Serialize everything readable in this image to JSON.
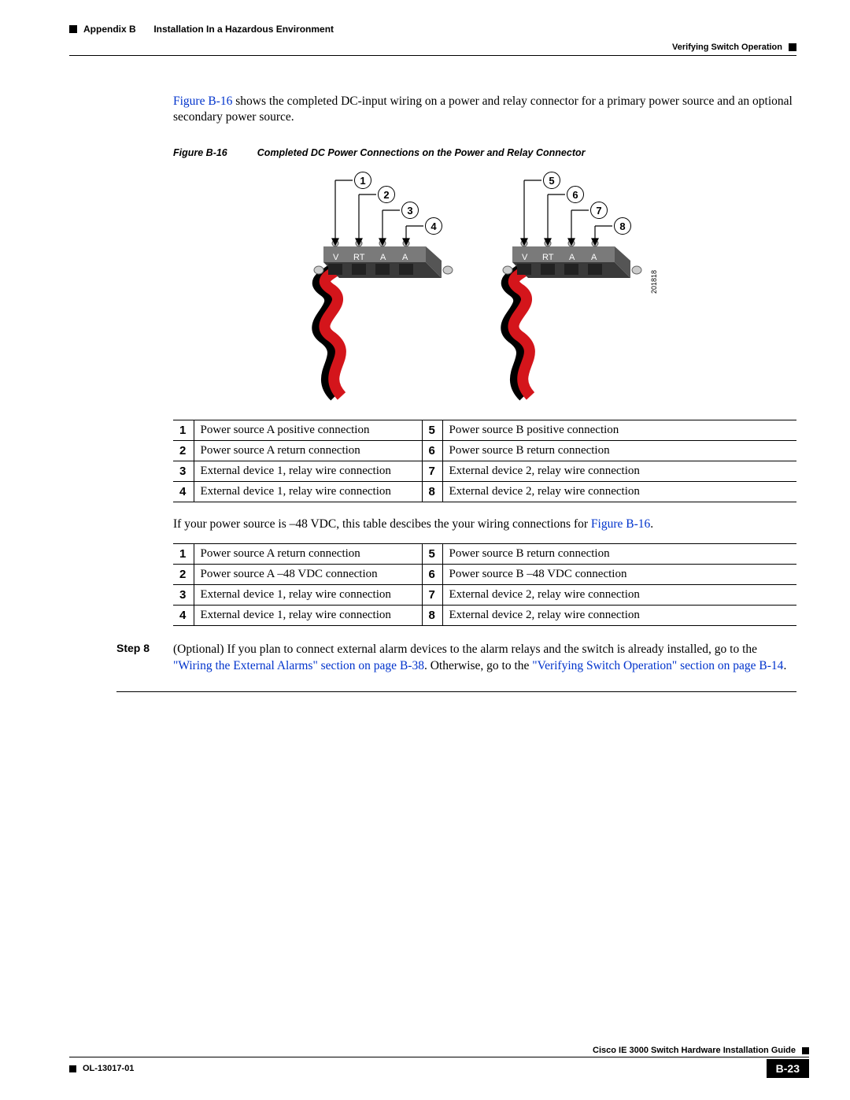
{
  "header": {
    "appendix_label": "Appendix B",
    "appendix_title": "Installation In a Hazardous Environment",
    "section_title": "Verifying Switch Operation"
  },
  "intro": {
    "link": "Figure B-16",
    "text_after": " shows the completed DC-input wiring on a power and relay connector for a primary power source and an optional secondary power source."
  },
  "figure": {
    "label": "Figure B-16",
    "caption": "Completed DC Power Connections on the Power and Relay Connector",
    "image_id": "201818",
    "callouts_left": [
      "1",
      "2",
      "3",
      "4"
    ],
    "callouts_right": [
      "5",
      "6",
      "7",
      "8"
    ],
    "terminal_labels": [
      "V",
      "RT",
      "A",
      "A"
    ],
    "colors": {
      "wire_red": "#d4151b",
      "wire_black": "#000000",
      "block_fill": "#9a9a9a",
      "block_dark": "#3a3a3a"
    }
  },
  "table1": {
    "rows": [
      {
        "n1": "1",
        "d1": "Power source A positive connection",
        "n2": "5",
        "d2": "Power source B positive connection"
      },
      {
        "n1": "2",
        "d1": "Power source A return connection",
        "n2": "6",
        "d2": "Power source B return connection"
      },
      {
        "n1": "3",
        "d1": "External device 1, relay wire connection",
        "n2": "7",
        "d2": "External device 2, relay wire connection"
      },
      {
        "n1": "4",
        "d1": "External device 1, relay wire connection",
        "n2": "8",
        "d2": "External device 2, relay wire connection"
      }
    ]
  },
  "mid_para": {
    "text_before": "If your power source is –48 VDC, this table descibes the your wiring connections for ",
    "link": "Figure B-16",
    "text_after": "."
  },
  "table2": {
    "rows": [
      {
        "n1": "1",
        "d1": "Power source A return connection",
        "n2": "5",
        "d2": "Power source B return connection"
      },
      {
        "n1": "2",
        "d1": "Power source A –48 VDC connection",
        "n2": "6",
        "d2": "Power source B –48 VDC connection"
      },
      {
        "n1": "3",
        "d1": "External device 1, relay wire connection",
        "n2": "7",
        "d2": "External device 2, relay wire connection"
      },
      {
        "n1": "4",
        "d1": "External device 1, relay wire connection",
        "n2": "8",
        "d2": "External device 2, relay wire connection"
      }
    ]
  },
  "step": {
    "label": "Step 8",
    "text_before": "(Optional) If you plan to connect external alarm devices to the alarm relays and the switch is already installed, go to the ",
    "link1": "\"Wiring the External Alarms\" section on page B-38",
    "mid": ". Otherwise, go to the ",
    "link2": "\"Verifying Switch Operation\" section on page B-14",
    "text_after": "."
  },
  "footer": {
    "guide": "Cisco IE 3000 Switch Hardware Installation Guide",
    "doc": "OL-13017-01",
    "page": "B-23"
  }
}
